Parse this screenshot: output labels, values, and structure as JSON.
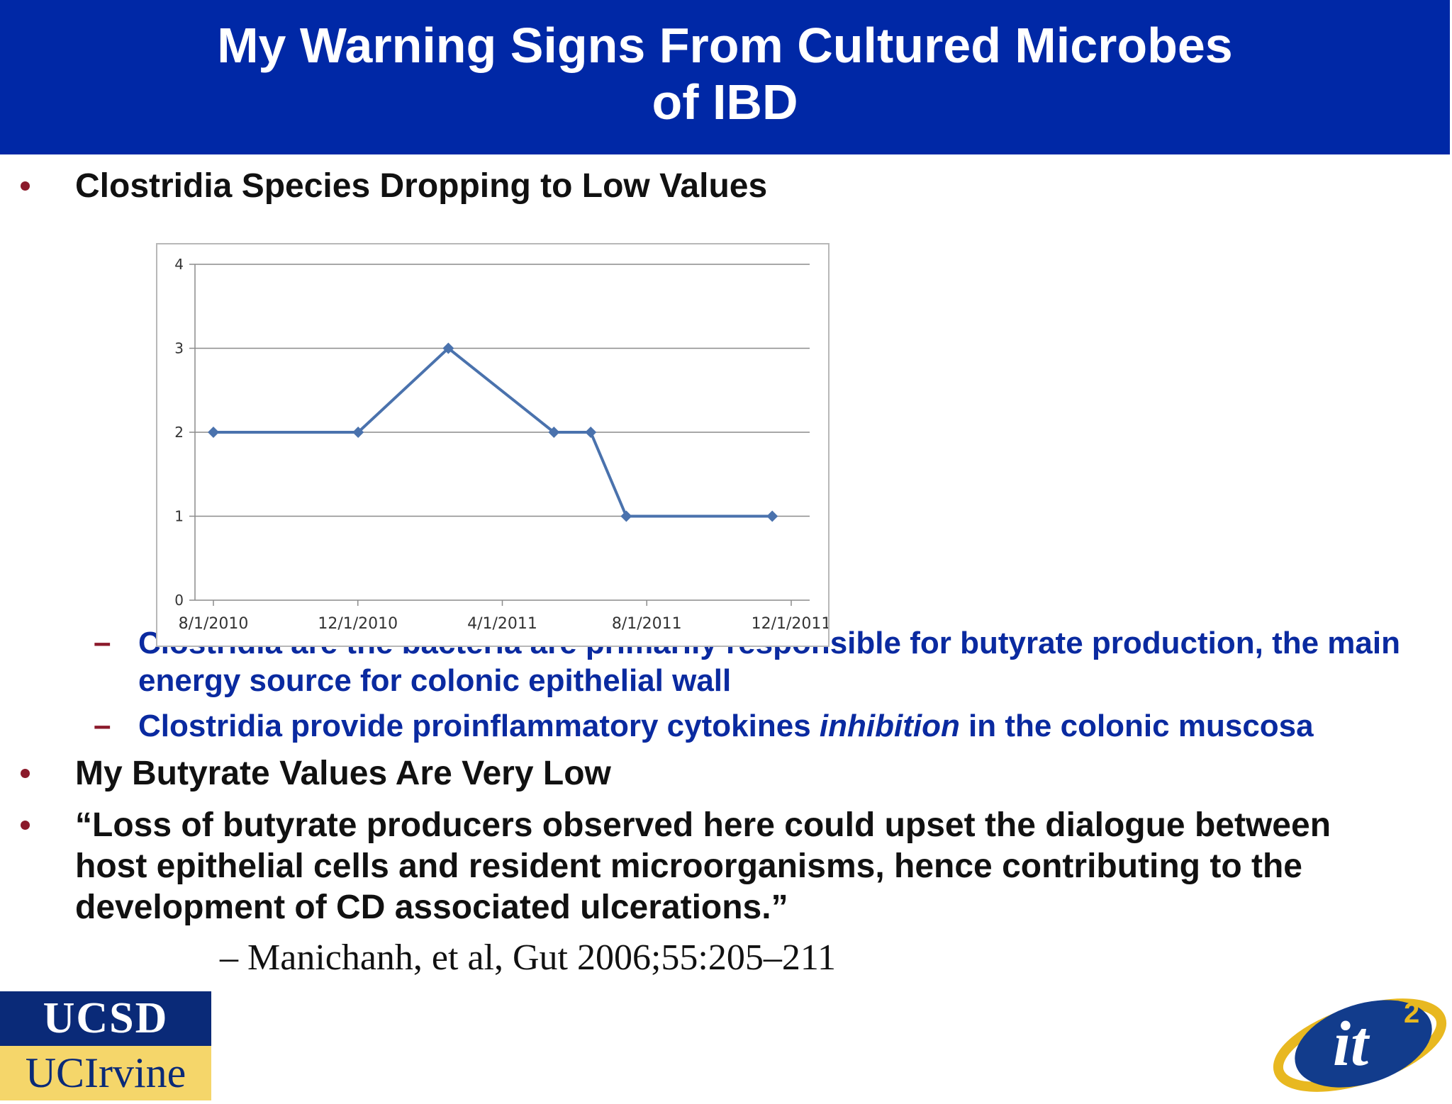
{
  "title": {
    "line1": "My Warning Signs From Cultured Microbes",
    "line2": "of IBD"
  },
  "bullets": [
    "Clostridia Species Dropping to Low Values",
    "My Butyrate Values Are Very Low",
    "“Loss of butyrate producers observed here could upset the dialogue between host epithelial cells and resident microorganisms, hence contributing to the development of CD associated ulcerations.”"
  ],
  "sub_bullets": [
    "Clostridia are the bacteria are primarily responsible for butyrate production, the main energy source for colonic epithelial wall",
    "Clostridia provide proinflammatory cytokines inhibition in the colonic muscosa"
  ],
  "sub_bullet_2_parts": {
    "before": "Clostridia provide proinflammatory cytokines ",
    "italic": "inhibition",
    "after": " in the colonic muscosa"
  },
  "citation": "Manichanh, et al, Gut 2006;55:205–211",
  "logos": {
    "ucsd": "UCSD",
    "uci": "UCIrvine",
    "it2_main": "it",
    "it2_sup": "2"
  },
  "colors": {
    "title_bg": "#0028a6",
    "bullet_red": "#8b1a2b",
    "sub_text_blue": "#0a2aa0",
    "series": "#4a72ad"
  },
  "chart_data": {
    "type": "line",
    "x_tick_labels": [
      "8/1/2010",
      "12/1/2010",
      "4/1/2011",
      "8/1/2011",
      "12/1/2011"
    ],
    "x_range": [
      "2010-08-01",
      "2011-12-01"
    ],
    "y_ticks": [
      0,
      1,
      2,
      3,
      4
    ],
    "ylim": [
      0,
      4
    ],
    "grid": "horizontal",
    "points": [
      {
        "x": "2010-08-01",
        "y": 2
      },
      {
        "x": "2010-12-01",
        "y": 2
      },
      {
        "x": "2011-02-15",
        "y": 3
      },
      {
        "x": "2011-05-15",
        "y": 2
      },
      {
        "x": "2011-06-15",
        "y": 2
      },
      {
        "x": "2011-07-15",
        "y": 1
      },
      {
        "x": "2011-11-15",
        "y": 1
      }
    ]
  }
}
